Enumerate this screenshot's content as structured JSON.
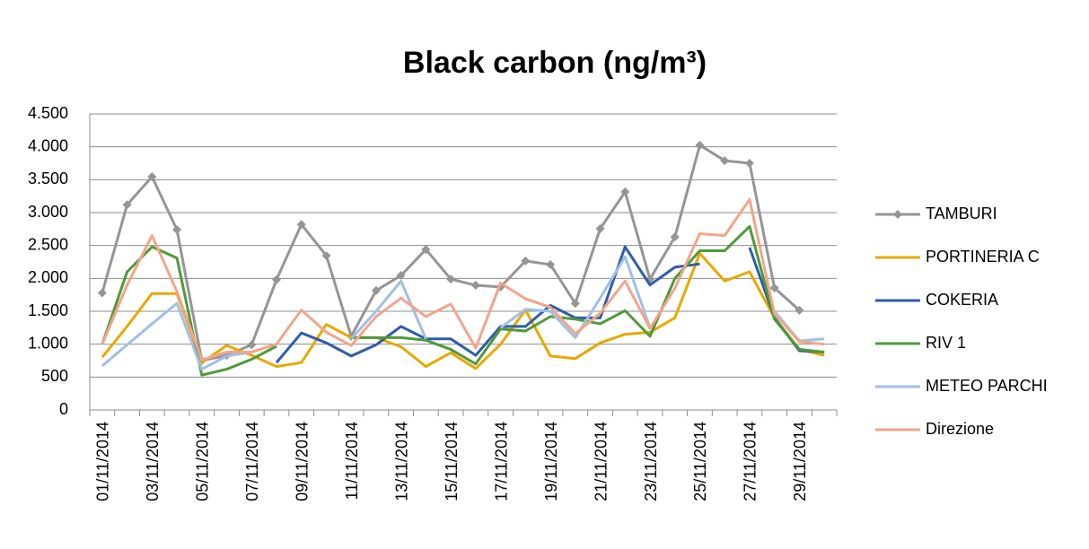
{
  "chart_data": {
    "type": "line",
    "title": "Black carbon  (ng/m³)",
    "categories": [
      "01/11/2014",
      null,
      "03/11/2014",
      null,
      "05/11/2014",
      null,
      "07/11/2014",
      null,
      "09/11/2014",
      null,
      "11/11/2014",
      null,
      "13/11/2014",
      null,
      "15/11/2014",
      null,
      "17/11/2014",
      null,
      "19/11/2014",
      null,
      "21/11/2014",
      null,
      "23/11/2014",
      null,
      "25/11/2014",
      null,
      "27/11/2014",
      null,
      "29/11/2014",
      null
    ],
    "ylim": [
      0,
      4500
    ],
    "yticks": [
      0,
      500,
      {
        "value": 1000,
        "label": "1.000"
      },
      {
        "value": 1500,
        "label": "1.500"
      },
      {
        "value": 2000,
        "label": "2.000"
      },
      {
        "value": 2500,
        "label": "2.500"
      },
      {
        "value": 3000,
        "label": "3.000"
      },
      {
        "value": 3500,
        "label": "3.500"
      },
      {
        "value": 4000,
        "label": "4.000"
      },
      {
        "value": 4500,
        "label": "4.500"
      }
    ],
    "grid": true,
    "legend": "right",
    "series": [
      {
        "name": "TAMBURI",
        "color": "#959595",
        "marker": "diamond",
        "values": [
          1780,
          3120,
          3545,
          2740,
          750,
          830,
          990,
          1980,
          2820,
          2345,
          1120,
          1815,
          2045,
          2440,
          1990,
          1895,
          1870,
          2265,
          2210,
          1620,
          2755,
          3315,
          1990,
          2630,
          4025,
          3790,
          3750,
          1855,
          1515,
          null
        ]
      },
      {
        "name": "PORTINERIA C",
        "color": "#e8a800",
        "values": [
          800,
          1270,
          1770,
          1770,
          720,
          980,
          830,
          660,
          720,
          1300,
          1100,
          1100,
          960,
          660,
          870,
          630,
          1000,
          1520,
          820,
          780,
          1020,
          1150,
          1180,
          1400,
          2380,
          1960,
          2100,
          1400,
          920,
          830
        ]
      },
      {
        "name": "COKERIA",
        "color": "#2f5da8",
        "values": [
          null,
          null,
          null,
          null,
          800,
          null,
          null,
          720,
          1170,
          1020,
          820,
          990,
          1270,
          1080,
          1080,
          830,
          1270,
          1270,
          1590,
          1400,
          1400,
          2480,
          1900,
          2170,
          2220,
          null,
          2470,
          1400,
          900,
          880
        ]
      },
      {
        "name": "RIV 1",
        "color": "#4e9a3a",
        "values": [
          1000,
          2100,
          2480,
          2310,
          530,
          620,
          770,
          970,
          null,
          null,
          1100,
          1100,
          1100,
          1060,
          920,
          700,
          1230,
          1200,
          1420,
          1380,
          1310,
          1510,
          1120,
          2000,
          2420,
          2420,
          2790,
          1380,
          920,
          880
        ]
      },
      {
        "name": "METEO PARCHI",
        "color": "#9fbfe6",
        "values": [
          670,
          990,
          1310,
          1620,
          620,
          820,
          880,
          null,
          null,
          null,
          1080,
          1500,
          1960,
          1080,
          null,
          null,
          1250,
          1530,
          1500,
          1100,
          1700,
          2330,
          1250,
          null,
          null,
          null,
          null,
          1500,
          1050,
          1080
        ]
      },
      {
        "name": "Direzione",
        "color": "#f2a58a",
        "values": [
          1000,
          1900,
          2650,
          1800,
          760,
          880,
          880,
          1000,
          1520,
          1180,
          980,
          1420,
          1700,
          1420,
          1610,
          940,
          1930,
          1690,
          1560,
          1160,
          1470,
          1960,
          1240,
          1850,
          2680,
          2650,
          3200,
          1460,
          1040,
          1000
        ]
      }
    ]
  }
}
